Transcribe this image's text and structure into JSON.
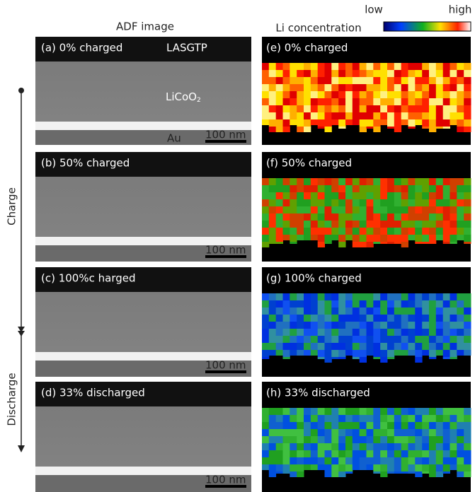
{
  "headers": {
    "adf": "ADF image",
    "li": "Li concentration"
  },
  "colorbar": {
    "low": "low",
    "high": "high"
  },
  "side": {
    "charge": "Charge",
    "discharge": "Discharge"
  },
  "panels_left": [
    {
      "label": "(a) 0% charged"
    },
    {
      "label": "(b) 50% charged"
    },
    {
      "label": "(c) 100%c harged"
    },
    {
      "label": "(d) 33% discharged"
    }
  ],
  "panels_right": [
    {
      "label": "(e) 0% charged"
    },
    {
      "label": "(f) 50% charged"
    },
    {
      "label": "(g) 100% charged"
    },
    {
      "label": "(h) 33% discharged"
    }
  ],
  "annotations": {
    "lasgtp": "LASGTP",
    "licoo": "LiCoO",
    "licoo_sub": "2",
    "au": "Au"
  },
  "scale_bar": "100 nm"
}
